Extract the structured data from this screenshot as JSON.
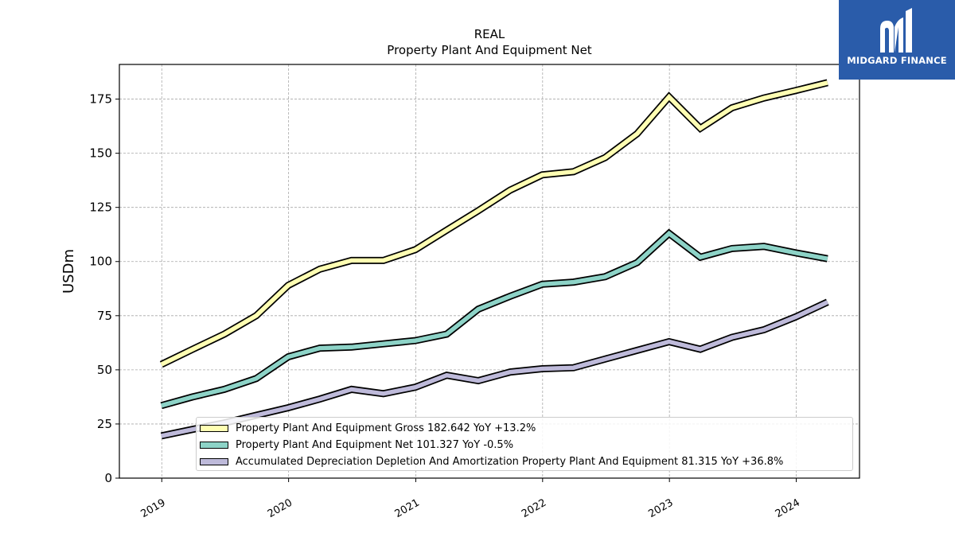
{
  "brand": {
    "name": "MIDGARD FINANCE",
    "background": "#2a5caa"
  },
  "chart_data": {
    "type": "line",
    "title": "REAL",
    "subtitle": "Property Plant And Equipment Net",
    "xlabel": "",
    "ylabel": "USDm",
    "x_tick_labels": [
      "2019",
      "2020",
      "2021",
      "2022",
      "2023",
      "2024"
    ],
    "y_ticks": [
      0,
      25,
      50,
      75,
      100,
      125,
      150,
      175
    ],
    "ylim": [
      0,
      191
    ],
    "xlim": [
      "2018-09-01",
      "2024-07-01"
    ],
    "grid": true,
    "legend_position": "bottom-right",
    "x": [
      "2018-12-31",
      "2019-03-31",
      "2019-06-30",
      "2019-09-30",
      "2019-12-31",
      "2020-03-31",
      "2020-06-30",
      "2020-09-30",
      "2020-12-31",
      "2021-03-31",
      "2021-06-30",
      "2021-09-30",
      "2021-12-31",
      "2022-03-31",
      "2022-06-30",
      "2022-09-30",
      "2022-12-31",
      "2023-03-31",
      "2023-06-30",
      "2023-09-30",
      "2023-12-31",
      "2024-03-31"
    ],
    "series": [
      {
        "name": "Property Plant And Equipment Gross",
        "legend_label": "Property Plant And Equipment Gross  182.642 YoY +13.2%",
        "color": "#ffffb3",
        "values": [
          52.5,
          59.5,
          66.5,
          75.0,
          89.0,
          96.5,
          100.5,
          100.5,
          105.5,
          114.5,
          123.5,
          133.0,
          140.0,
          141.5,
          148.0,
          159.0,
          176.0,
          161.5,
          171.0,
          175.5,
          179.0,
          182.6
        ]
      },
      {
        "name": "Property Plant And Equipment Net",
        "legend_label": "Property Plant And Equipment Net  101.327 YoY -0.5%",
        "color": "#8dd3c7",
        "values": [
          33.5,
          37.5,
          41.0,
          46.0,
          56.0,
          60.0,
          60.5,
          62.0,
          63.5,
          66.5,
          78.0,
          84.0,
          89.5,
          90.5,
          93.0,
          99.5,
          113.0,
          102.0,
          106.0,
          107.0,
          104.0,
          101.3
        ]
      },
      {
        "name": "Accumulated Depreciation Depletion And Amortization Property Plant And Equipment",
        "legend_label": "Accumulated Depreciation Depletion And Amortization Property Plant And Equipment  81.315 YoY +36.8%",
        "color": "#bebada",
        "values": [
          19.5,
          22.5,
          25.5,
          29.0,
          32.5,
          36.5,
          41.0,
          39.0,
          42.0,
          47.5,
          45.0,
          49.0,
          50.5,
          51.0,
          55.0,
          59.0,
          63.0,
          59.5,
          65.0,
          68.5,
          74.5,
          81.3
        ]
      }
    ]
  }
}
